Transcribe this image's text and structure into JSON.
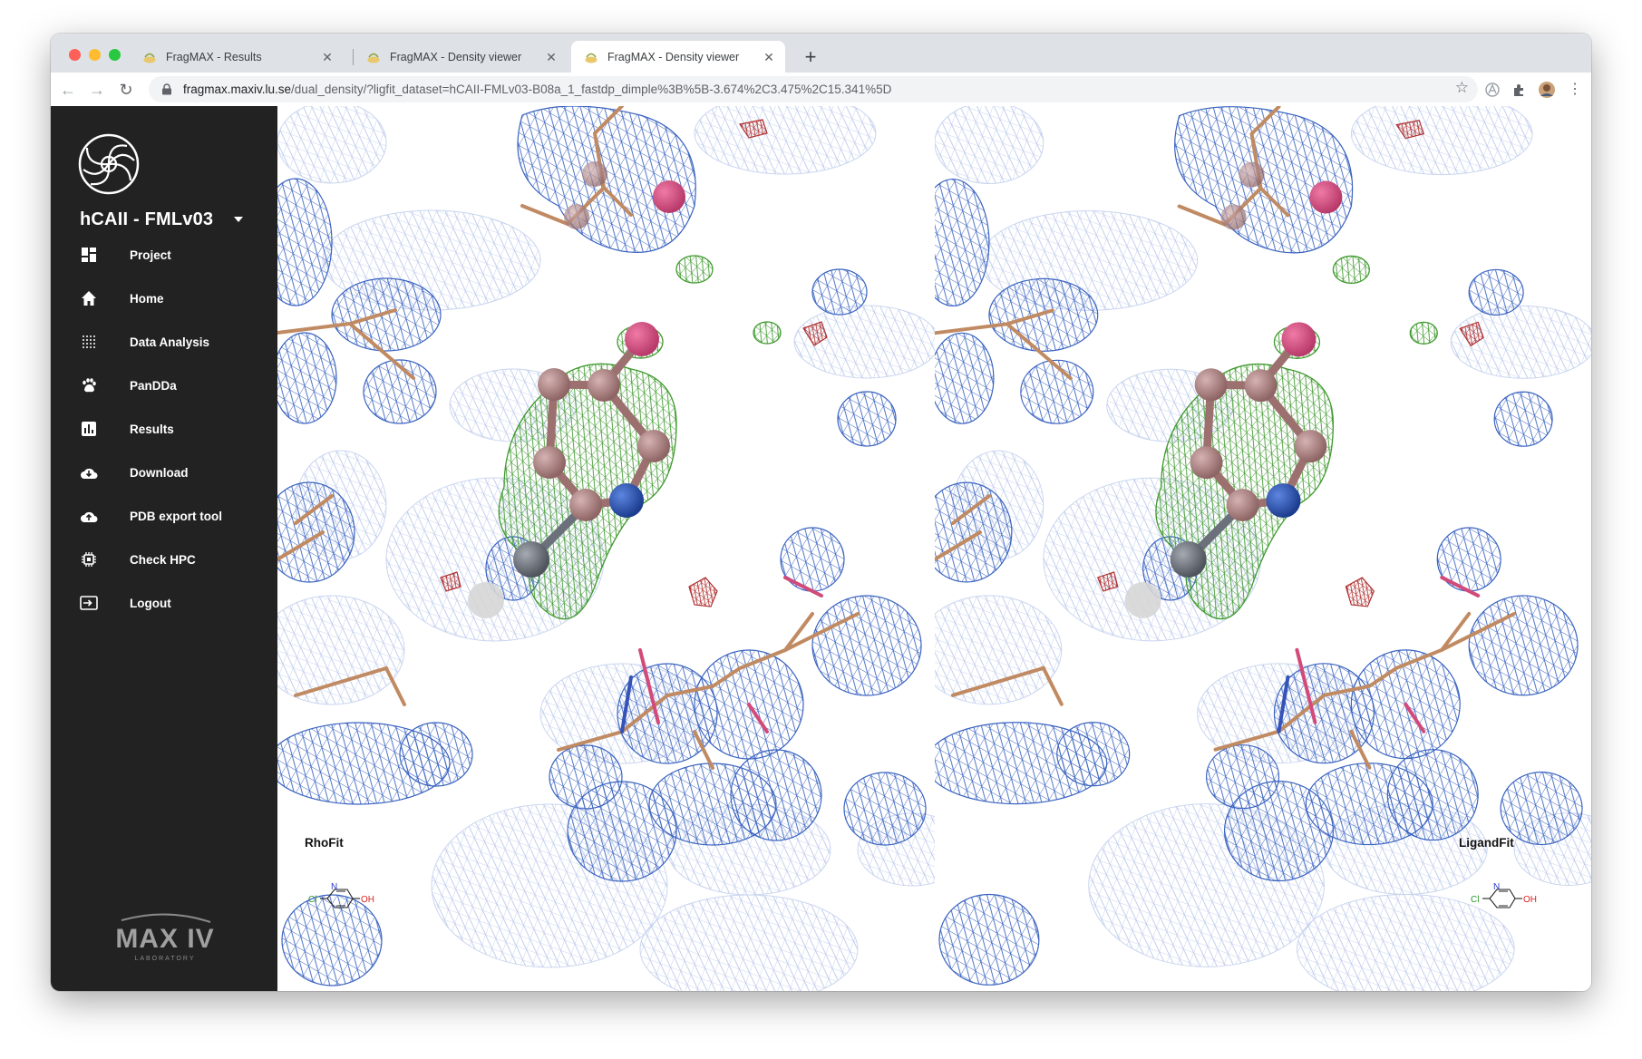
{
  "browser": {
    "tabs": [
      {
        "title": "FragMAX - Results",
        "active": false
      },
      {
        "title": "FragMAX - Density viewer",
        "active": false
      },
      {
        "title": "FragMAX - Density viewer",
        "active": true
      }
    ],
    "url_host": "fragmax.maxiv.lu.se",
    "url_path": "/dual_density/?ligfit_dataset=hCAII-FMLv03-B08a_1_fastdp_dimple%3B%5B-3.674%2C3.475%2C15.341%5D"
  },
  "sidebar": {
    "project_name": "hCAII - FMLv03",
    "items": [
      {
        "label": "Project",
        "icon": "dashboard-icon"
      },
      {
        "label": "Home",
        "icon": "home-icon"
      },
      {
        "label": "Data Analysis",
        "icon": "grid-dots-icon"
      },
      {
        "label": "PanDDa",
        "icon": "paw-icon"
      },
      {
        "label": "Results",
        "icon": "bar-chart-icon"
      },
      {
        "label": "Download",
        "icon": "cloud-download-icon"
      },
      {
        "label": "PDB export tool",
        "icon": "cloud-upload-icon"
      },
      {
        "label": "Check HPC",
        "icon": "chip-icon"
      },
      {
        "label": "Logout",
        "icon": "logout-icon"
      }
    ],
    "footer_logo_text": "MAX IV",
    "footer_logo_sub": "LABORATORY"
  },
  "viewers": {
    "left": {
      "label": "RhoFit"
    },
    "right": {
      "label": "LigandFit"
    },
    "structure": {
      "atoms": [
        "Cl",
        "N",
        "OH"
      ]
    }
  },
  "colors": {
    "sidebar_bg": "#222222",
    "density_blue": "#3a63c0",
    "density_green": "#3f9a2e",
    "density_red": "#b03030",
    "ligand_carbon": "#b38a8a",
    "ligand_nitrogen": "#2a55b8",
    "ligand_oxygen": "#e0558a",
    "ligand_chlorine": "#7a7f88"
  }
}
